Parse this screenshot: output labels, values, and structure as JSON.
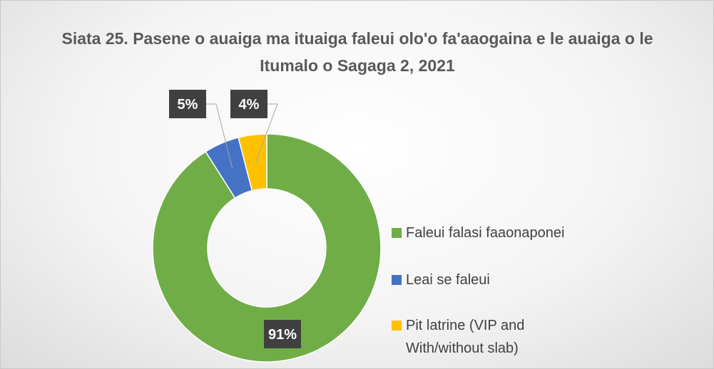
{
  "chart_data": {
    "type": "pie",
    "title": "Siata 25. Pasene o auaiga ma ituaiga faleui olo'o fa'aaogaina e le auaiga o le Itumalo o Sagaga 2, 2021",
    "categories": [
      "Faleui falasi faaonaponei",
      "Leai se faleui",
      "Pit latrine (VIP and With/without slab)"
    ],
    "values": [
      91,
      5,
      4
    ],
    "value_labels": [
      "91%",
      "5%",
      "4%"
    ],
    "colors": [
      "#70ad47",
      "#4472c4",
      "#ffc000"
    ],
    "legend": "right"
  }
}
